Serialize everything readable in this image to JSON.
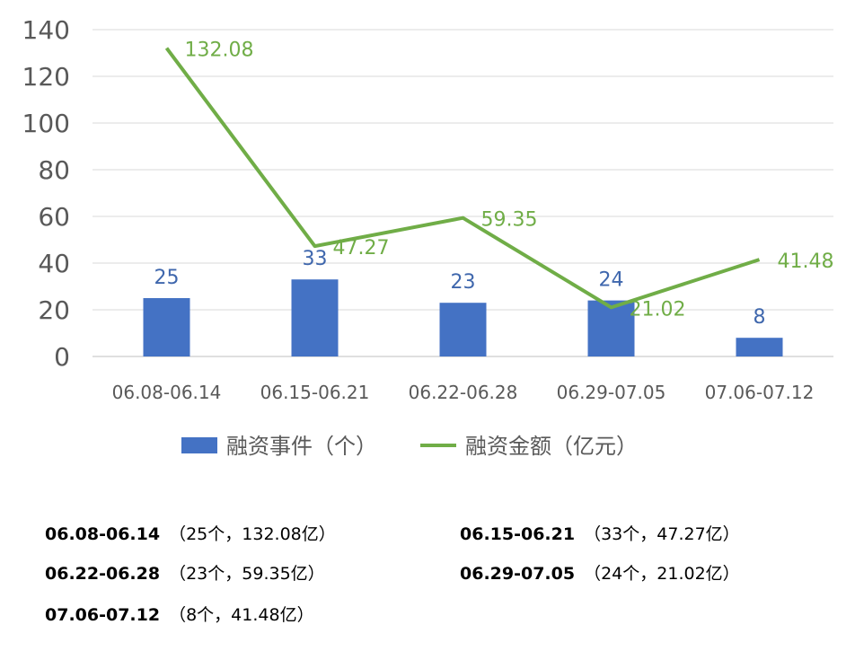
{
  "chart_data": {
    "type": "bar+line",
    "categories": [
      "06.08-06.14",
      "06.15-06.21",
      "06.22-06.28",
      "06.29-07.05",
      "07.06-07.12"
    ],
    "series": [
      {
        "name": "融资事件（个）",
        "type": "bar",
        "color": "#4472C4",
        "values": [
          25,
          33,
          23,
          24,
          8
        ]
      },
      {
        "name": "融资金额（亿元）",
        "type": "line",
        "color": "#70AD47",
        "values": [
          132.08,
          47.27,
          59.35,
          21.02,
          41.48
        ]
      }
    ],
    "ylim": [
      0,
      140
    ],
    "yticks": [
      0,
      20,
      40,
      60,
      80,
      100,
      120,
      140
    ],
    "grid": true,
    "legend": "bottom"
  },
  "notes": [
    {
      "period": "06.08-06.14",
      "detail": "（25个，132.08亿）"
    },
    {
      "period": "06.15-06.21",
      "detail": "（33个，47.27亿）"
    },
    {
      "period": "06.22-06.28",
      "detail": "（23个，59.35亿）"
    },
    {
      "period": "06.29-07.05",
      "detail": "（24个，21.02亿）"
    },
    {
      "period": "07.06-07.12",
      "detail": "（8个，41.48亿）"
    }
  ]
}
